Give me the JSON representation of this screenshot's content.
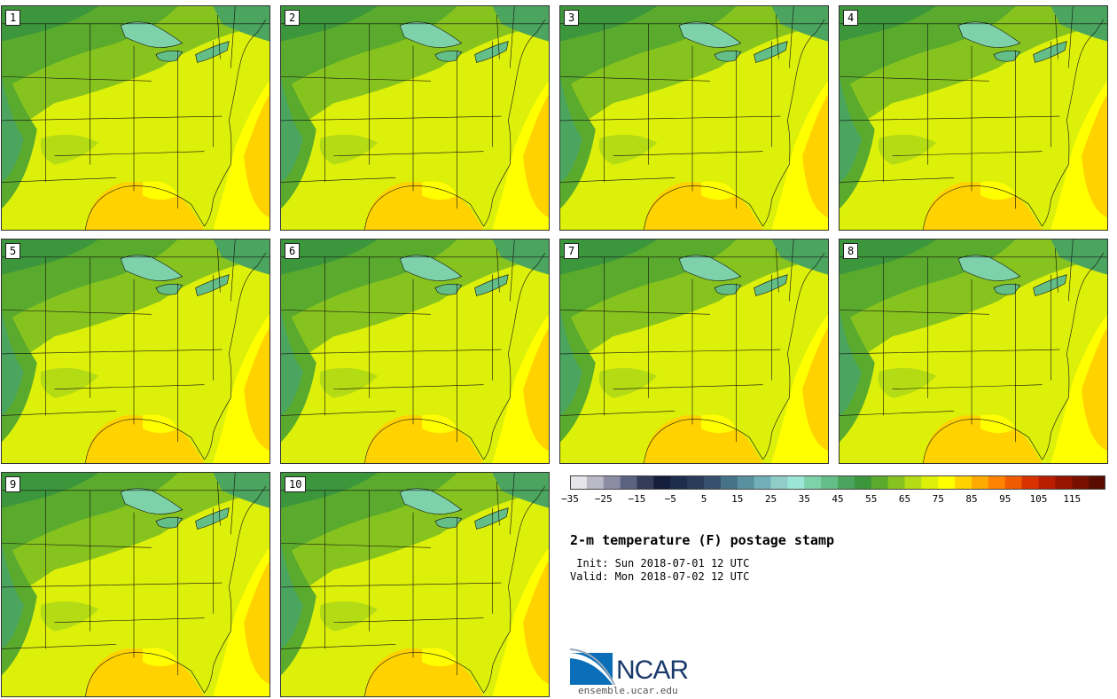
{
  "panels": [
    {
      "label": "1"
    },
    {
      "label": "2"
    },
    {
      "label": "3"
    },
    {
      "label": "4"
    },
    {
      "label": "5"
    },
    {
      "label": "6"
    },
    {
      "label": "7"
    },
    {
      "label": "8"
    },
    {
      "label": "9"
    },
    {
      "label": "10"
    }
  ],
  "colorbar": {
    "colors": [
      "#e6e6ea",
      "#b9b9c8",
      "#8c8ca5",
      "#5a6482",
      "#323c5a",
      "#141e3c",
      "#1e2d4b",
      "#283c5a",
      "#37506e",
      "#467387",
      "#5a91a0",
      "#73afb9",
      "#91cdc8",
      "#9be6d7",
      "#7dd2aa",
      "#64be87",
      "#4ba55f",
      "#3c963c",
      "#5aaa2d",
      "#87c31e",
      "#b4dc14",
      "#dcf00a",
      "#ffff00",
      "#ffd200",
      "#ffaa00",
      "#ff8200",
      "#f05a00",
      "#d73200",
      "#b91e00",
      "#961400",
      "#781000",
      "#5a0c00"
    ],
    "tick_labels": [
      "−35",
      "−25",
      "−15",
      "−5",
      "5",
      "15",
      "25",
      "35",
      "45",
      "55",
      "65",
      "75",
      "85",
      "95",
      "105",
      "115"
    ]
  },
  "title": "2-m temperature (F) postage stamp",
  "init": " Init: Sun 2018-07-01 12 UTC",
  "valid": "Valid: Mon 2018-07-02 12 UTC",
  "logo": {
    "name": "NCAR",
    "url": "ensemble.ucar.edu"
  }
}
